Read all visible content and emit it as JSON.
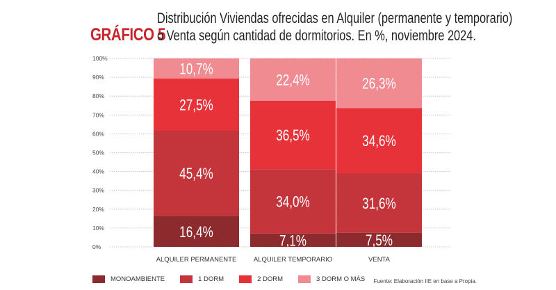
{
  "header": {
    "figure_label": "GRÁFICO 5",
    "title_line1": "Distribución Viviendas ofrecidas en Alquiler (permanente y temporario)",
    "title_line2": "o Venta según cantidad de dormitorios. En %, noviembre 2024."
  },
  "chart_data": {
    "type": "bar",
    "stacked": true,
    "categories": [
      "ALQUILER PERMANENTE",
      "ALQUILER TEMPORARIO",
      "VENTA"
    ],
    "series": [
      {
        "name": "MONOAMBIENTE",
        "values": [
          16.4,
          7.1,
          7.5
        ],
        "labels": [
          "16,4%",
          "7,1%",
          "7,5%"
        ],
        "color": "#8c2a2e"
      },
      {
        "name": "1 DORM",
        "values": [
          45.4,
          34.0,
          31.6
        ],
        "labels": [
          "45,4%",
          "34,0%",
          "31,6%"
        ],
        "color": "#c3343b"
      },
      {
        "name": "2 DORM",
        "values": [
          27.5,
          36.5,
          34.6
        ],
        "labels": [
          "27,5%",
          "36,5%",
          "34,6%"
        ],
        "color": "#e8323a"
      },
      {
        "name": "3 DORM O MÁS",
        "values": [
          10.7,
          22.4,
          26.3
        ],
        "labels": [
          "10,7%",
          "22,4%",
          "26,3%"
        ],
        "color": "#f08b91"
      }
    ],
    "y_ticks": [
      "0%",
      "10%",
      "20%",
      "30%",
      "40%",
      "50%",
      "60%",
      "70%",
      "80%",
      "90%",
      "100%"
    ],
    "ylim": [
      0,
      100
    ],
    "grid": true,
    "legend_position": "bottom"
  },
  "source": "Fuente: Elaboración IIE en base a Propia."
}
